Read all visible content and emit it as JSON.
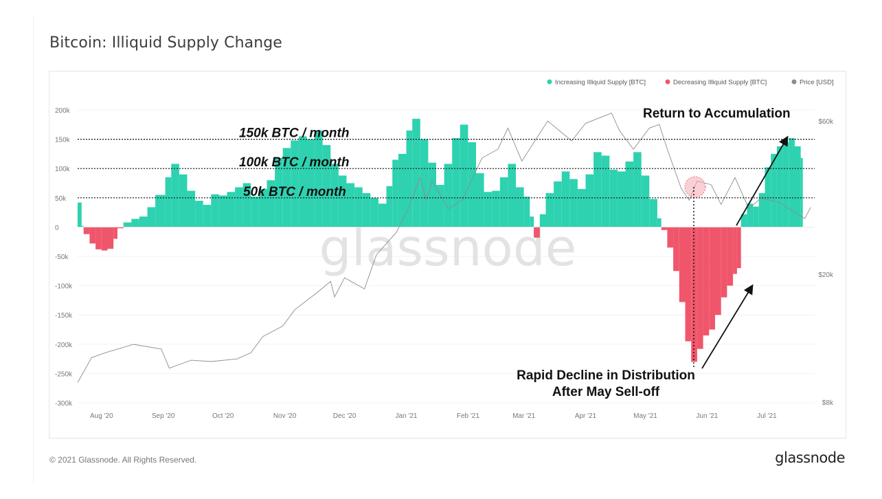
{
  "page": {
    "title": "Bitcoin: Illiquid Supply Change",
    "copyright": "© 2021 Glassnode. All Rights Reserved.",
    "brand": "glassnode",
    "watermark": "glassnode"
  },
  "chart_data": {
    "type": "bar",
    "title": "Bitcoin: Illiquid Supply Change",
    "legend_position": "top-right",
    "series": [
      {
        "name": "Increasing Illiquid Supply [BTC]",
        "color": "#2ed2b0"
      },
      {
        "name": "Decreasing Illiquid Supply [BTC]",
        "color": "#f0566b"
      },
      {
        "name": "Price [USD]",
        "color": "#8c8c8c"
      }
    ],
    "y_left": {
      "ticks": [
        200000,
        150000,
        100000,
        50000,
        0,
        -50000,
        -100000,
        -150000,
        -200000,
        -250000,
        -300000
      ],
      "tick_labels": [
        "200k",
        "150k",
        "100k",
        "50k",
        "0",
        "-50k",
        "-100k",
        "-150k",
        "-200k",
        "-250k",
        "-300k"
      ],
      "range": [
        -300000,
        200000
      ]
    },
    "y_right": {
      "scale": "log",
      "tick_labels": [
        "$60k",
        "$20k",
        "$8k"
      ],
      "ticks": [
        60000,
        20000,
        8000
      ]
    },
    "x_axis": {
      "range": [
        "2020-07-20",
        "2021-07-25"
      ],
      "tick_labels": [
        "Aug '20",
        "Sep '20",
        "Oct '20",
        "Nov '20",
        "Dec '20",
        "Jan '21",
        "Feb '21",
        "Mar '21",
        "Apr '21",
        "May '21",
        "Jun '21",
        "Jul '21"
      ],
      "tick_dates": [
        "2020-08-01",
        "2020-09-01",
        "2020-10-01",
        "2020-11-01",
        "2020-12-01",
        "2021-01-01",
        "2021-02-01",
        "2021-03-01",
        "2021-04-01",
        "2021-05-01",
        "2021-06-01",
        "2021-07-01"
      ]
    },
    "illiquid_supply_change": [
      {
        "date": "2020-07-20",
        "value": 42000
      },
      {
        "date": "2020-07-22",
        "value": 2000
      },
      {
        "date": "2020-07-23",
        "value": -12000
      },
      {
        "date": "2020-07-26",
        "value": -28000
      },
      {
        "date": "2020-07-29",
        "value": -38000
      },
      {
        "date": "2020-08-01",
        "value": -40000
      },
      {
        "date": "2020-08-04",
        "value": -37000
      },
      {
        "date": "2020-08-07",
        "value": -20000
      },
      {
        "date": "2020-08-09",
        "value": -2000
      },
      {
        "date": "2020-08-12",
        "value": 8000
      },
      {
        "date": "2020-08-16",
        "value": 14000
      },
      {
        "date": "2020-08-20",
        "value": 18000
      },
      {
        "date": "2020-08-24",
        "value": 34000
      },
      {
        "date": "2020-08-28",
        "value": 55000
      },
      {
        "date": "2020-09-02",
        "value": 85000
      },
      {
        "date": "2020-09-05",
        "value": 108000
      },
      {
        "date": "2020-09-09",
        "value": 90000
      },
      {
        "date": "2020-09-13",
        "value": 62000
      },
      {
        "date": "2020-09-17",
        "value": 45000
      },
      {
        "date": "2020-09-21",
        "value": 38000
      },
      {
        "date": "2020-09-25",
        "value": 56000
      },
      {
        "date": "2020-09-29",
        "value": 54000
      },
      {
        "date": "2020-10-03",
        "value": 60000
      },
      {
        "date": "2020-10-07",
        "value": 68000
      },
      {
        "date": "2020-10-11",
        "value": 75000
      },
      {
        "date": "2020-10-15",
        "value": 52000
      },
      {
        "date": "2020-10-19",
        "value": 65000
      },
      {
        "date": "2020-10-23",
        "value": 80000
      },
      {
        "date": "2020-10-27",
        "value": 118000
      },
      {
        "date": "2020-10-31",
        "value": 135000
      },
      {
        "date": "2020-11-04",
        "value": 148000
      },
      {
        "date": "2020-11-08",
        "value": 155000
      },
      {
        "date": "2020-11-12",
        "value": 150000
      },
      {
        "date": "2020-11-16",
        "value": 165000
      },
      {
        "date": "2020-11-20",
        "value": 140000
      },
      {
        "date": "2020-11-24",
        "value": 108000
      },
      {
        "date": "2020-11-28",
        "value": 88000
      },
      {
        "date": "2020-12-02",
        "value": 75000
      },
      {
        "date": "2020-12-06",
        "value": 68000
      },
      {
        "date": "2020-12-10",
        "value": 58000
      },
      {
        "date": "2020-12-14",
        "value": 50000
      },
      {
        "date": "2020-12-18",
        "value": 40000
      },
      {
        "date": "2020-12-22",
        "value": 70000
      },
      {
        "date": "2020-12-25",
        "value": 115000
      },
      {
        "date": "2020-12-28",
        "value": 125000
      },
      {
        "date": "2021-01-01",
        "value": 165000
      },
      {
        "date": "2021-01-04",
        "value": 185000
      },
      {
        "date": "2021-01-08",
        "value": 150000
      },
      {
        "date": "2021-01-12",
        "value": 110000
      },
      {
        "date": "2021-01-16",
        "value": 72000
      },
      {
        "date": "2021-01-20",
        "value": 108000
      },
      {
        "date": "2021-01-24",
        "value": 152000
      },
      {
        "date": "2021-01-28",
        "value": 175000
      },
      {
        "date": "2021-02-01",
        "value": 145000
      },
      {
        "date": "2021-02-05",
        "value": 92000
      },
      {
        "date": "2021-02-09",
        "value": 60000
      },
      {
        "date": "2021-02-13",
        "value": 62000
      },
      {
        "date": "2021-02-17",
        "value": 85000
      },
      {
        "date": "2021-02-21",
        "value": 108000
      },
      {
        "date": "2021-02-25",
        "value": 68000
      },
      {
        "date": "2021-03-01",
        "value": 52000
      },
      {
        "date": "2021-03-04",
        "value": 18000
      },
      {
        "date": "2021-03-06",
        "value": -18000
      },
      {
        "date": "2021-03-09",
        "value": 22000
      },
      {
        "date": "2021-03-12",
        "value": 58000
      },
      {
        "date": "2021-03-16",
        "value": 78000
      },
      {
        "date": "2021-03-20",
        "value": 95000
      },
      {
        "date": "2021-03-24",
        "value": 82000
      },
      {
        "date": "2021-03-28",
        "value": 65000
      },
      {
        "date": "2021-04-01",
        "value": 90000
      },
      {
        "date": "2021-04-05",
        "value": 128000
      },
      {
        "date": "2021-04-09",
        "value": 122000
      },
      {
        "date": "2021-04-13",
        "value": 98000
      },
      {
        "date": "2021-04-17",
        "value": 95000
      },
      {
        "date": "2021-04-21",
        "value": 112000
      },
      {
        "date": "2021-04-25",
        "value": 128000
      },
      {
        "date": "2021-04-29",
        "value": 88000
      },
      {
        "date": "2021-05-03",
        "value": 48000
      },
      {
        "date": "2021-05-07",
        "value": 15000
      },
      {
        "date": "2021-05-09",
        "value": -5000
      },
      {
        "date": "2021-05-12",
        "value": -35000
      },
      {
        "date": "2021-05-15",
        "value": -75000
      },
      {
        "date": "2021-05-18",
        "value": -128000
      },
      {
        "date": "2021-05-21",
        "value": -195000
      },
      {
        "date": "2021-05-24",
        "value": -230000
      },
      {
        "date": "2021-05-27",
        "value": -208000
      },
      {
        "date": "2021-05-30",
        "value": -185000
      },
      {
        "date": "2021-06-02",
        "value": -175000
      },
      {
        "date": "2021-06-05",
        "value": -150000
      },
      {
        "date": "2021-06-08",
        "value": -120000
      },
      {
        "date": "2021-06-11",
        "value": -100000
      },
      {
        "date": "2021-06-14",
        "value": -80000
      },
      {
        "date": "2021-06-16",
        "value": -70000
      },
      {
        "date": "2021-06-18",
        "value": 22000
      },
      {
        "date": "2021-06-21",
        "value": 40000
      },
      {
        "date": "2021-06-24",
        "value": 35000
      },
      {
        "date": "2021-06-27",
        "value": 58000
      },
      {
        "date": "2021-06-30",
        "value": 102000
      },
      {
        "date": "2021-07-03",
        "value": 125000
      },
      {
        "date": "2021-07-06",
        "value": 138000
      },
      {
        "date": "2021-07-09",
        "value": 145000
      },
      {
        "date": "2021-07-12",
        "value": 152000
      },
      {
        "date": "2021-07-15",
        "value": 138000
      },
      {
        "date": "2021-07-18",
        "value": 118000
      }
    ],
    "price_usd": [
      {
        "date": "2020-07-20",
        "value": 9200
      },
      {
        "date": "2020-07-27",
        "value": 11000
      },
      {
        "date": "2020-08-03",
        "value": 11400
      },
      {
        "date": "2020-08-17",
        "value": 12100
      },
      {
        "date": "2020-08-31",
        "value": 11700
      },
      {
        "date": "2020-09-04",
        "value": 10200
      },
      {
        "date": "2020-09-15",
        "value": 10800
      },
      {
        "date": "2020-09-25",
        "value": 10700
      },
      {
        "date": "2020-10-08",
        "value": 10900
      },
      {
        "date": "2020-10-15",
        "value": 11400
      },
      {
        "date": "2020-10-21",
        "value": 12800
      },
      {
        "date": "2020-10-31",
        "value": 13800
      },
      {
        "date": "2020-11-06",
        "value": 15500
      },
      {
        "date": "2020-11-17",
        "value": 17500
      },
      {
        "date": "2020-11-24",
        "value": 19000
      },
      {
        "date": "2020-11-26",
        "value": 17000
      },
      {
        "date": "2020-12-01",
        "value": 19500
      },
      {
        "date": "2020-12-11",
        "value": 18000
      },
      {
        "date": "2020-12-17",
        "value": 23000
      },
      {
        "date": "2020-12-27",
        "value": 27000
      },
      {
        "date": "2021-01-02",
        "value": 32000
      },
      {
        "date": "2021-01-08",
        "value": 40000
      },
      {
        "date": "2021-01-11",
        "value": 34000
      },
      {
        "date": "2021-01-14",
        "value": 39000
      },
      {
        "date": "2021-01-22",
        "value": 32000
      },
      {
        "date": "2021-01-29",
        "value": 34000
      },
      {
        "date": "2021-02-08",
        "value": 46000
      },
      {
        "date": "2021-02-16",
        "value": 49000
      },
      {
        "date": "2021-02-21",
        "value": 57000
      },
      {
        "date": "2021-02-28",
        "value": 45000
      },
      {
        "date": "2021-03-13",
        "value": 60000
      },
      {
        "date": "2021-03-25",
        "value": 52000
      },
      {
        "date": "2021-04-01",
        "value": 59000
      },
      {
        "date": "2021-04-14",
        "value": 63500
      },
      {
        "date": "2021-04-18",
        "value": 56000
      },
      {
        "date": "2021-04-25",
        "value": 49000
      },
      {
        "date": "2021-05-03",
        "value": 57000
      },
      {
        "date": "2021-05-08",
        "value": 58500
      },
      {
        "date": "2021-05-12",
        "value": 49000
      },
      {
        "date": "2021-05-19",
        "value": 37000
      },
      {
        "date": "2021-05-23",
        "value": 34000
      },
      {
        "date": "2021-05-27",
        "value": 39000
      },
      {
        "date": "2021-06-03",
        "value": 38000
      },
      {
        "date": "2021-06-08",
        "value": 33000
      },
      {
        "date": "2021-06-15",
        "value": 40000
      },
      {
        "date": "2021-06-22",
        "value": 32000
      },
      {
        "date": "2021-06-28",
        "value": 34500
      },
      {
        "date": "2021-07-07",
        "value": 33500
      },
      {
        "date": "2021-07-20",
        "value": 29800
      },
      {
        "date": "2021-07-23",
        "value": 32300
      }
    ],
    "reference_lines": [
      {
        "value": 150000,
        "label": "150k BTC / month"
      },
      {
        "value": 100000,
        "label": "100k BTC / month"
      },
      {
        "value": 50000,
        "label": "50k BTC / month"
      }
    ],
    "annotations": [
      {
        "text": "Return to Accumulation"
      },
      {
        "text": "Rapid Decline in Distribution"
      },
      {
        "text": "After May Sell-off"
      }
    ]
  }
}
